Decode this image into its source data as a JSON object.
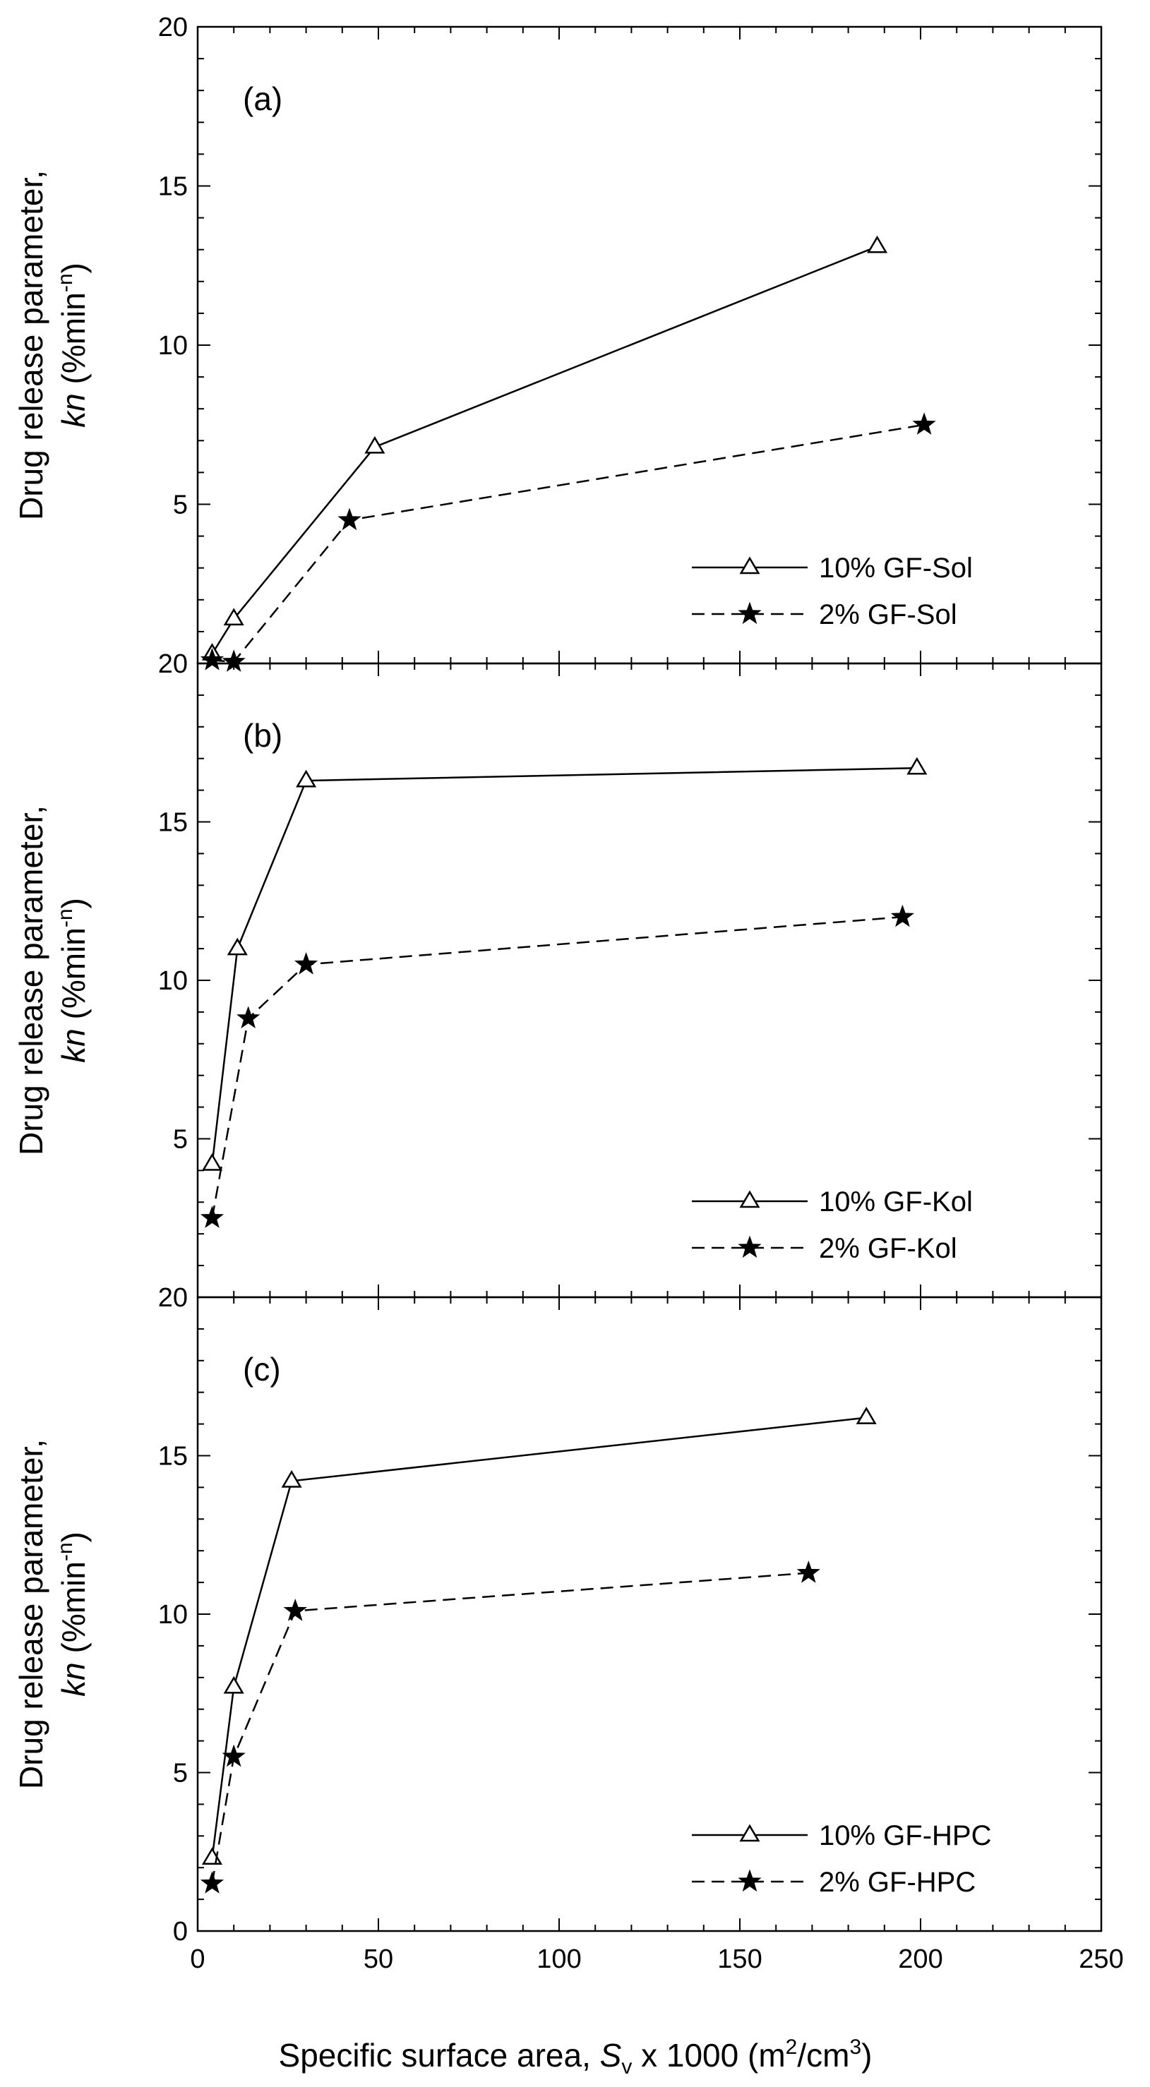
{
  "chart_data": [
    {
      "type": "line",
      "panel_label": "(a)",
      "ylabel_line1": "Drug release parameter,",
      "ylabel_var": "kn",
      "ylabel_unit_open": " (%min",
      "ylabel_unit_sup": "-n",
      "ylabel_unit_close": ")",
      "ylim": [
        0,
        20
      ],
      "yticks": [
        0,
        5,
        10,
        15,
        20
      ],
      "ytick_labels": [
        "",
        "5",
        "10",
        "15",
        "20"
      ],
      "xlim": [
        0,
        250
      ],
      "legend_position": "bottom-right",
      "series": [
        {
          "name": "10% GF-Sol",
          "marker": "open-triangle",
          "linestyle": "solid",
          "x": [
            4,
            10,
            49,
            188
          ],
          "y": [
            0.3,
            1.4,
            6.8,
            13.1
          ]
        },
        {
          "name": "2% GF-Sol",
          "marker": "filled-star",
          "linestyle": "dashed",
          "x": [
            4,
            10,
            42,
            201
          ],
          "y": [
            0.1,
            0.05,
            4.5,
            7.5
          ]
        }
      ]
    },
    {
      "type": "line",
      "panel_label": "(b)",
      "ylabel_line1": "Drug release parameter,",
      "ylabel_var": "kn",
      "ylabel_unit_open": " (%min",
      "ylabel_unit_sup": "-n",
      "ylabel_unit_close": ")",
      "ylim": [
        0,
        20
      ],
      "yticks": [
        0,
        5,
        10,
        15,
        20
      ],
      "ytick_labels": [
        "",
        "5",
        "10",
        "15",
        "20"
      ],
      "xlim": [
        0,
        250
      ],
      "legend_position": "bottom-right",
      "series": [
        {
          "name": "10% GF-Kol",
          "marker": "open-triangle",
          "linestyle": "solid",
          "x": [
            4,
            11,
            30,
            199
          ],
          "y": [
            4.2,
            11.0,
            16.3,
            16.7
          ]
        },
        {
          "name": "2% GF-Kol",
          "marker": "filled-star",
          "linestyle": "dashed",
          "x": [
            4,
            14,
            30,
            195
          ],
          "y": [
            2.5,
            8.8,
            10.5,
            12.0
          ]
        }
      ]
    },
    {
      "type": "line",
      "panel_label": "(c)",
      "ylabel_line1": "Drug release parameter,",
      "ylabel_var": "kn",
      "ylabel_unit_open": " (%min",
      "ylabel_unit_sup": "-n",
      "ylabel_unit_close": ")",
      "ylim": [
        0,
        20
      ],
      "yticks": [
        0,
        5,
        10,
        15,
        20
      ],
      "ytick_labels": [
        "0",
        "5",
        "10",
        "15",
        "20"
      ],
      "xlim": [
        0,
        250
      ],
      "xticks": [
        0,
        50,
        100,
        150,
        200,
        250
      ],
      "xtick_labels": [
        "0",
        "50",
        "100",
        "150",
        "200",
        "250"
      ],
      "legend_position": "bottom-right",
      "series": [
        {
          "name": "10% GF-HPC",
          "marker": "open-triangle",
          "linestyle": "solid",
          "x": [
            4,
            10,
            26,
            185
          ],
          "y": [
            2.3,
            7.7,
            14.2,
            16.2
          ]
        },
        {
          "name": "2% GF-HPC",
          "marker": "filled-star",
          "linestyle": "dashed",
          "x": [
            4,
            10,
            27,
            169
          ],
          "y": [
            1.5,
            5.5,
            10.1,
            11.3
          ]
        }
      ]
    }
  ],
  "xlabel": {
    "prefix": "Specific surface area, ",
    "var": "S",
    "sub": "v",
    "mid": " x 1000 (m",
    "sup": "2",
    "unit_close": "/cm",
    "sup2": "3",
    "close": ")"
  }
}
